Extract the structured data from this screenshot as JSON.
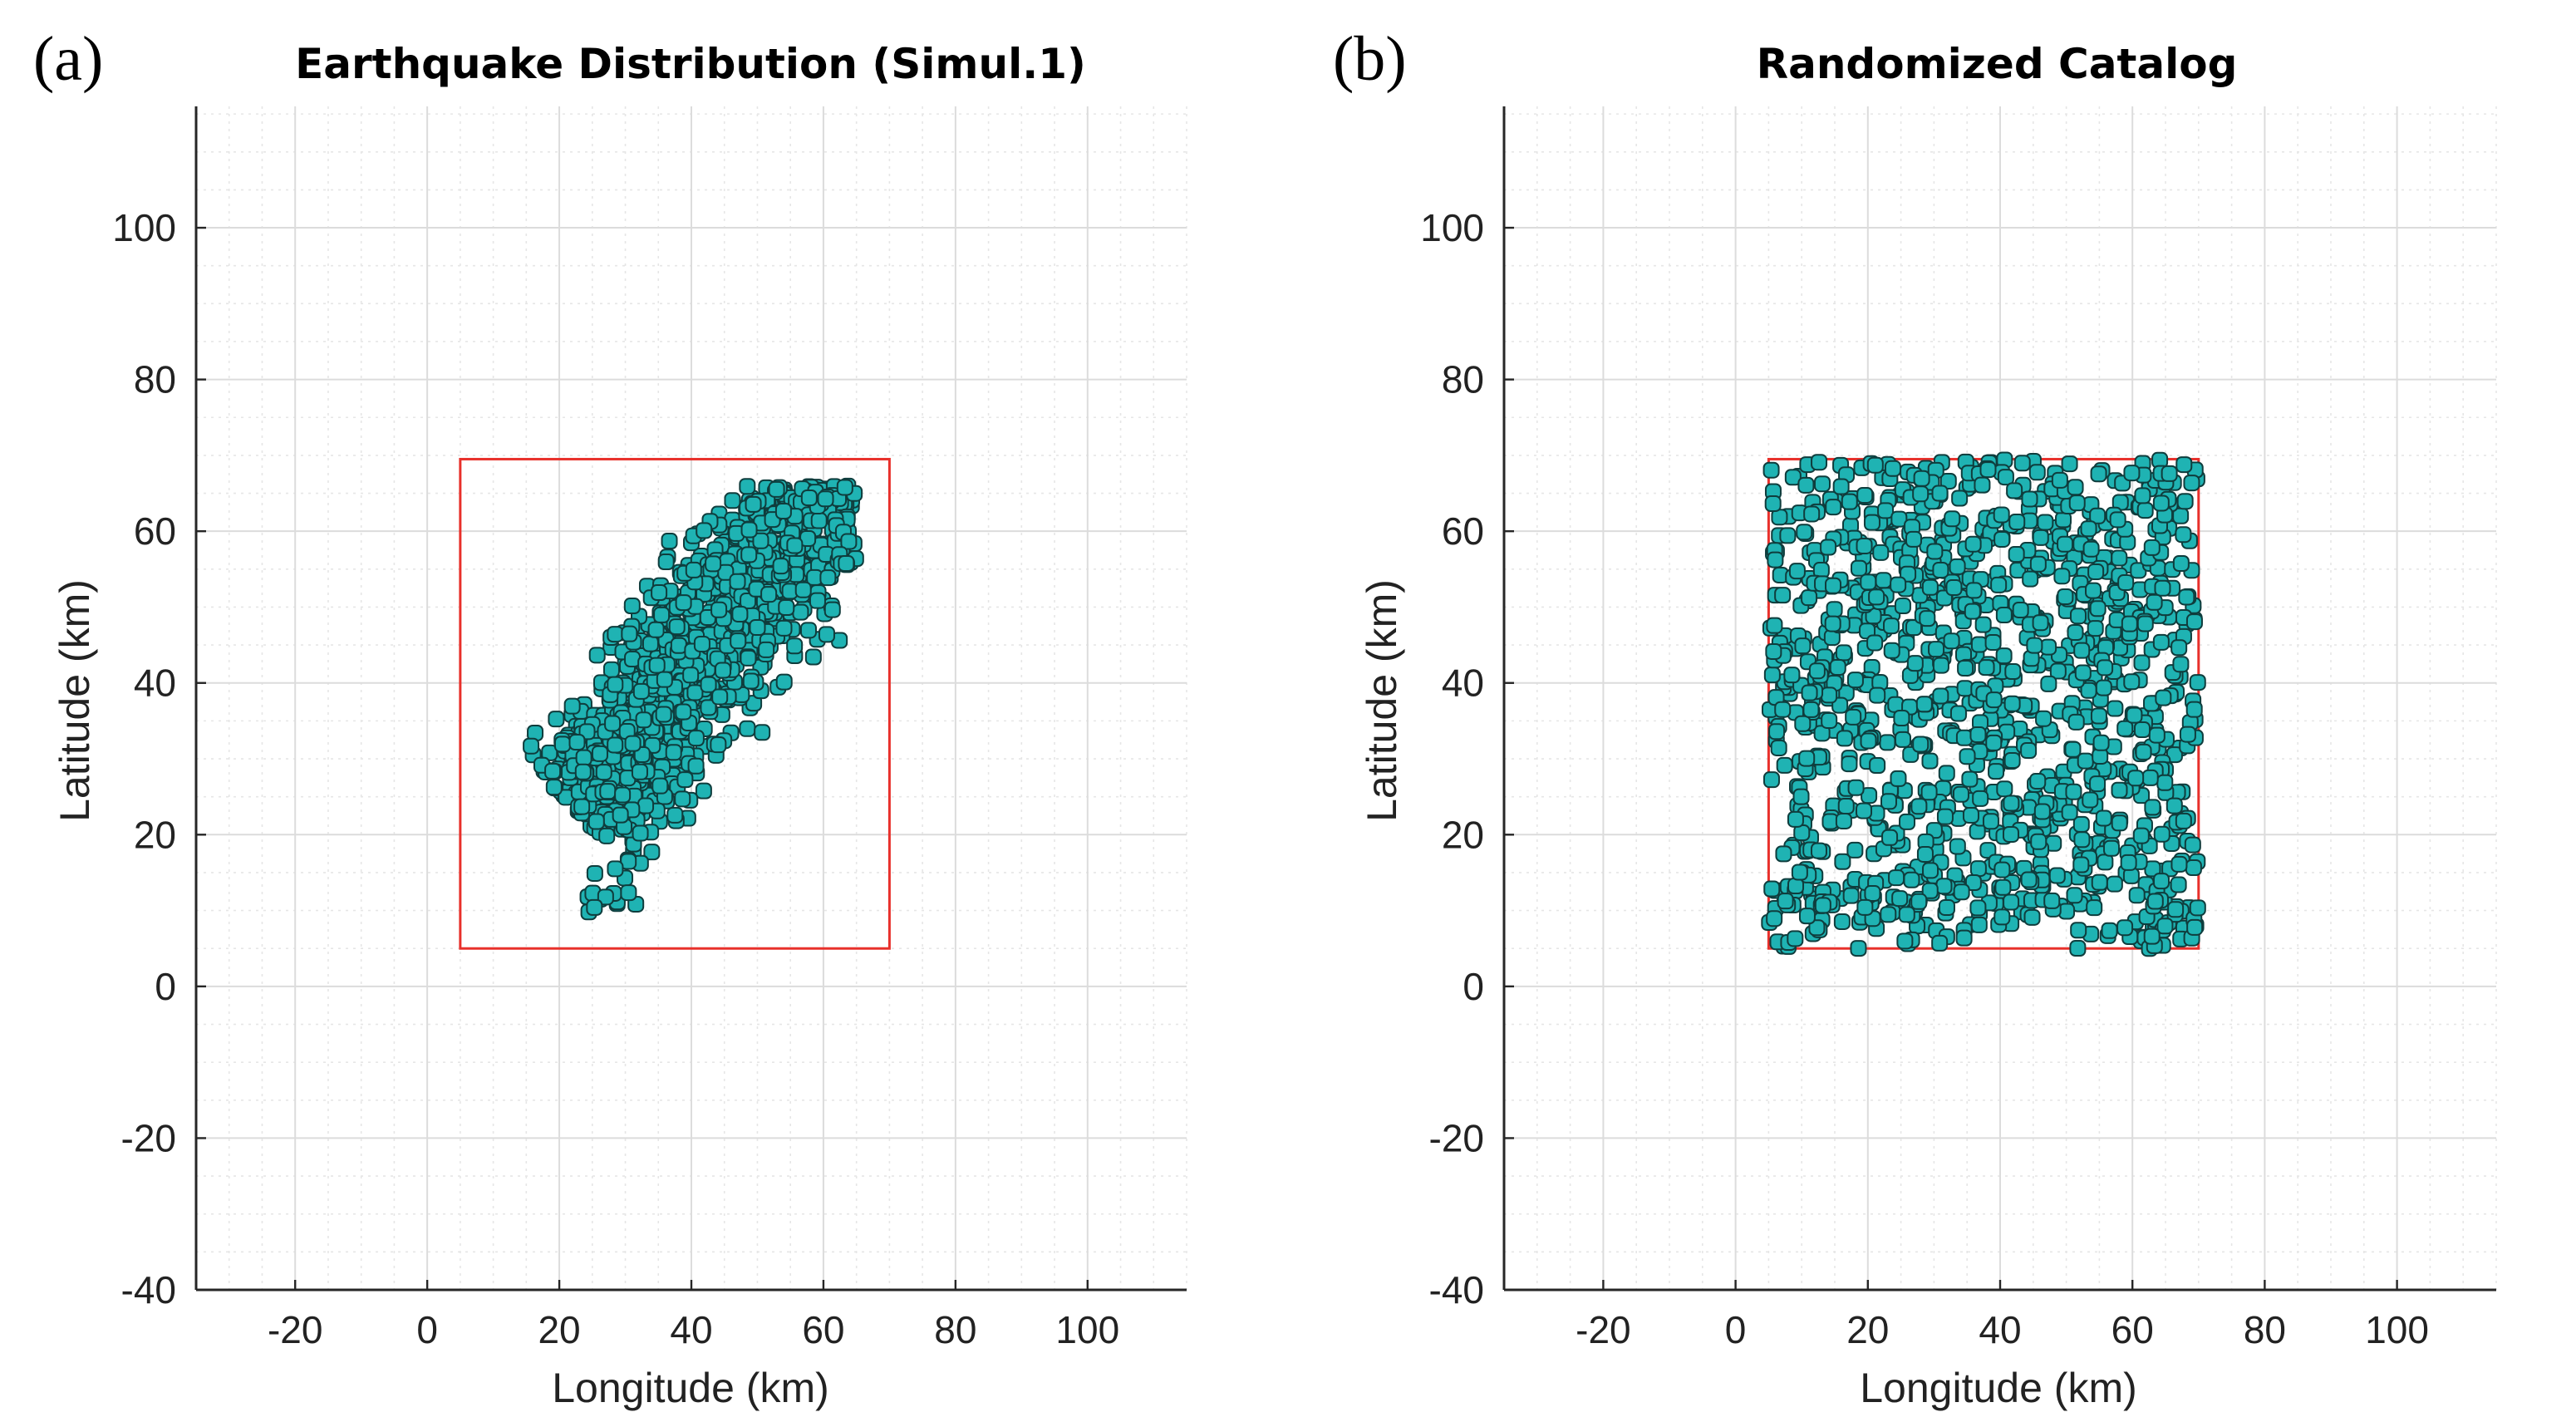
{
  "chart_data": [
    {
      "type": "scatter",
      "panel_label": "(a)",
      "title": "Earthquake Distribution (Simul.1)",
      "xlabel": "Longitude (km)",
      "ylabel": "Latitude (km)",
      "xlim": [
        -35,
        115
      ],
      "ylim": [
        -40,
        116
      ],
      "xticks": [
        -20,
        0,
        20,
        40,
        60,
        80,
        100
      ],
      "yticks": [
        -40,
        -20,
        0,
        20,
        40,
        60,
        80,
        100
      ],
      "grid": true,
      "minor_grid": true,
      "marker_color": "#1fb3b3",
      "marker_edge_color": "#0f3d3d",
      "box_color": "#e8302b",
      "box": {
        "x": [
          5,
          70
        ],
        "y": [
          5,
          69.5
        ]
      },
      "cluster": {
        "distribution": "elongated band trending south-west to north-east",
        "x_range": [
          14,
          65
        ],
        "y_range": [
          9,
          66
        ],
        "point_count": 1200
      }
    },
    {
      "type": "scatter",
      "panel_label": "(b)",
      "title": "Randomized Catalog",
      "xlabel": "Longitude (km)",
      "ylabel": "Latitude (km)",
      "xlim": [
        -35,
        115
      ],
      "ylim": [
        -40,
        116
      ],
      "xticks": [
        -20,
        0,
        20,
        40,
        60,
        80,
        100
      ],
      "yticks": [
        -40,
        -20,
        0,
        20,
        40,
        60,
        80,
        100
      ],
      "grid": true,
      "minor_grid": true,
      "marker_color": "#1fb3b3",
      "marker_edge_color": "#0f3d3d",
      "box_color": "#e8302b",
      "box": {
        "x": [
          5,
          70
        ],
        "y": [
          5,
          69.5
        ]
      },
      "cluster": {
        "distribution": "uniform random within box",
        "x_range": [
          5,
          70
        ],
        "y_range": [
          5,
          69.5
        ],
        "point_count": 1200
      }
    }
  ]
}
